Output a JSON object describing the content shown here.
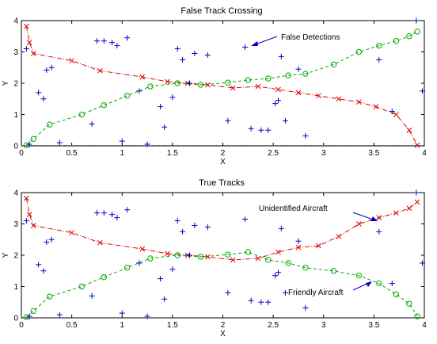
{
  "chart_data": [
    {
      "type": "scatter",
      "title": "False Track Crossing",
      "xlabel": "X",
      "ylabel": "Y",
      "xlim": [
        0,
        4
      ],
      "ylim": [
        0,
        4
      ],
      "xticks": [
        0,
        0.5,
        1,
        1.5,
        2,
        2.5,
        3,
        3.5,
        4
      ],
      "yticks": [
        0,
        1,
        2,
        3,
        4
      ],
      "series": [
        {
          "style": "red dash-dot line with x markers",
          "color": "#dd0000",
          "x": [
            0.05,
            0.08,
            0.12,
            0.5,
            0.78,
            1.2,
            1.45,
            1.65,
            1.85,
            2.1,
            2.35,
            2.55,
            2.75,
            2.95,
            3.15,
            3.35,
            3.52,
            3.72,
            3.85,
            3.93
          ],
          "y": [
            3.82,
            3.3,
            2.95,
            2.72,
            2.4,
            2.2,
            2.05,
            2.0,
            1.95,
            1.85,
            1.9,
            1.8,
            1.7,
            1.6,
            1.5,
            1.4,
            1.25,
            1.0,
            0.5,
            0.02
          ]
        },
        {
          "style": "green dashed line with circle markers",
          "color": "#00aa00",
          "x": [
            0.05,
            0.12,
            0.28,
            0.6,
            0.82,
            1.05,
            1.28,
            1.55,
            1.78,
            2.05,
            2.25,
            2.45,
            2.65,
            2.82,
            3.1,
            3.35,
            3.55,
            3.72,
            3.85,
            3.93
          ],
          "y": [
            0.02,
            0.22,
            0.68,
            1.0,
            1.3,
            1.6,
            1.9,
            2.0,
            1.95,
            2.02,
            2.1,
            2.15,
            2.25,
            2.3,
            2.6,
            3.0,
            3.2,
            3.35,
            3.5,
            3.65
          ]
        },
        {
          "style": "blue plus markers",
          "color": "#0000cc",
          "x": [
            0.05,
            0.08,
            0.17,
            0.22,
            0.25,
            0.3,
            0.38,
            0.7,
            0.75,
            0.82,
            0.9,
            0.95,
            1.0,
            1.05,
            1.17,
            1.25,
            1.38,
            1.42,
            1.5,
            1.55,
            1.6,
            1.67,
            1.72,
            1.85,
            2.05,
            2.22,
            2.28,
            2.38,
            2.45,
            2.52,
            2.55,
            2.58,
            2.62,
            2.75,
            2.82,
            3.55,
            3.68,
            3.92,
            3.98
          ],
          "y": [
            3.1,
            0.05,
            1.7,
            1.5,
            2.42,
            2.5,
            0.1,
            0.7,
            3.35,
            3.35,
            3.3,
            3.2,
            0.15,
            3.45,
            1.75,
            0.05,
            1.25,
            0.6,
            1.55,
            3.1,
            2.75,
            2.0,
            2.95,
            2.9,
            0.8,
            3.15,
            0.55,
            0.5,
            0.5,
            1.35,
            1.45,
            2.85,
            0.8,
            2.45,
            0.32,
            2.75,
            1.1,
            4.0,
            1.75
          ]
        }
      ],
      "annotations": [
        "False Detections"
      ]
    },
    {
      "type": "scatter",
      "title": "True Tracks",
      "xlabel": "X",
      "ylabel": "Y",
      "xlim": [
        0,
        4
      ],
      "ylim": [
        0,
        4
      ],
      "xticks": [
        0,
        0.5,
        1,
        1.5,
        2,
        2.5,
        3,
        3.5,
        4
      ],
      "yticks": [
        0,
        1,
        2,
        3,
        4
      ],
      "series": [
        {
          "style": "red dash-dot line with x markers",
          "color": "#dd0000",
          "x": [
            0.05,
            0.08,
            0.12,
            0.5,
            0.78,
            1.2,
            1.45,
            1.65,
            1.85,
            2.1,
            2.35,
            2.55,
            2.75,
            2.95,
            3.15,
            3.35,
            3.55,
            3.72,
            3.85,
            3.93
          ],
          "y": [
            3.82,
            3.3,
            2.95,
            2.72,
            2.4,
            2.2,
            2.05,
            2.0,
            1.95,
            1.85,
            1.9,
            2.1,
            2.25,
            2.3,
            2.6,
            3.0,
            3.2,
            3.35,
            3.5,
            3.7
          ]
        },
        {
          "style": "green dashed line with circle markers",
          "color": "#00aa00",
          "x": [
            0.05,
            0.12,
            0.28,
            0.6,
            0.82,
            1.05,
            1.28,
            1.55,
            1.78,
            2.05,
            2.25,
            2.45,
            2.65,
            2.82,
            3.1,
            3.35,
            3.55,
            3.72,
            3.85,
            3.93
          ],
          "y": [
            0.02,
            0.22,
            0.68,
            1.0,
            1.3,
            1.6,
            1.9,
            2.0,
            1.95,
            2.02,
            2.1,
            1.85,
            1.75,
            1.6,
            1.5,
            1.35,
            1.1,
            0.75,
            0.45,
            0.05
          ]
        },
        {
          "style": "blue plus markers",
          "color": "#0000cc",
          "x": [
            0.05,
            0.08,
            0.17,
            0.22,
            0.25,
            0.3,
            0.38,
            0.7,
            0.75,
            0.82,
            0.9,
            0.95,
            1.0,
            1.05,
            1.17,
            1.25,
            1.38,
            1.42,
            1.5,
            1.55,
            1.6,
            1.67,
            1.72,
            1.85,
            2.05,
            2.22,
            2.28,
            2.38,
            2.45,
            2.52,
            2.55,
            2.58,
            2.62,
            2.75,
            2.82,
            3.55,
            3.68,
            3.92,
            3.98
          ],
          "y": [
            3.1,
            0.05,
            1.7,
            1.5,
            2.42,
            2.5,
            0.1,
            0.7,
            3.35,
            3.35,
            3.3,
            3.2,
            0.15,
            3.45,
            1.75,
            0.05,
            1.25,
            0.6,
            1.55,
            3.1,
            2.75,
            2.0,
            2.95,
            2.9,
            0.8,
            3.15,
            0.55,
            0.5,
            0.5,
            1.35,
            1.45,
            2.85,
            0.8,
            2.45,
            0.32,
            2.75,
            1.1,
            4.0,
            1.75
          ]
        }
      ],
      "annotations": [
        "Unidentified Aircraft",
        "Friendly Aircraft"
      ]
    }
  ]
}
